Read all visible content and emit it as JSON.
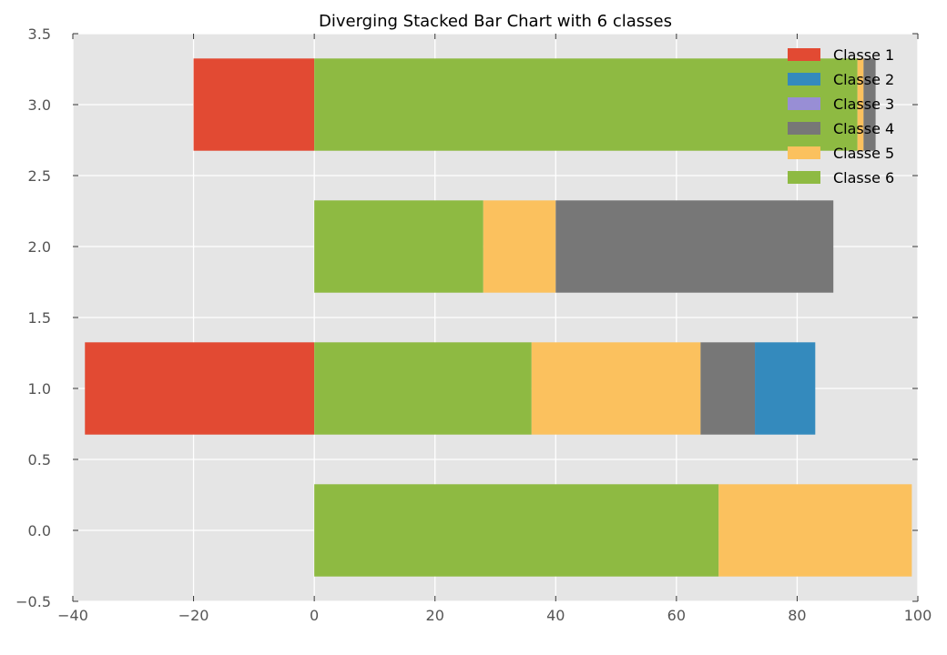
{
  "chart_data": {
    "type": "bar",
    "orientation": "horizontal",
    "stacked": true,
    "diverging": true,
    "title": "Diverging Stacked Bar Chart with 6 classes",
    "xlabel": "",
    "ylabel": "",
    "xlim": [
      -40,
      100
    ],
    "ylim": [
      -0.5,
      3.5
    ],
    "bar_positions": [
      0,
      1,
      2,
      3
    ],
    "bar_height": 0.65,
    "x_ticks": [
      -40,
      -20,
      0,
      20,
      40,
      60,
      80,
      100
    ],
    "x_tick_labels": [
      "−40",
      "−20",
      "0",
      "20",
      "40",
      "60",
      "80",
      "100"
    ],
    "y_ticks": [
      -0.5,
      0.0,
      0.5,
      1.0,
      1.5,
      2.0,
      2.5,
      3.0,
      3.5
    ],
    "y_tick_labels": [
      "−0.5",
      "0.0",
      "0.5",
      "1.0",
      "1.5",
      "2.0",
      "2.5",
      "3.0",
      "3.5"
    ],
    "grid": true,
    "background_color": "#e5e5e5",
    "grid_color": "#ffffff",
    "legend_position": "top-right",
    "stack_order_positive": [
      "Classe 6",
      "Classe 5",
      "Classe 4",
      "Classe 3",
      "Classe 2"
    ],
    "series": [
      {
        "name": "Classe 1",
        "color": "#e24a33",
        "values": [
          0,
          -38,
          0,
          -20
        ]
      },
      {
        "name": "Classe 2",
        "color": "#348abd",
        "values": [
          0,
          10,
          0,
          0
        ]
      },
      {
        "name": "Classe 3",
        "color": "#988ed5",
        "values": [
          0,
          0,
          0,
          0
        ]
      },
      {
        "name": "Classe 4",
        "color": "#777777",
        "values": [
          0,
          9,
          46,
          2
        ]
      },
      {
        "name": "Classe 5",
        "color": "#fbc15e",
        "values": [
          32,
          28,
          12,
          1
        ]
      },
      {
        "name": "Classe 6",
        "color": "#8eba42",
        "values": [
          67,
          36,
          28,
          90
        ]
      }
    ]
  }
}
